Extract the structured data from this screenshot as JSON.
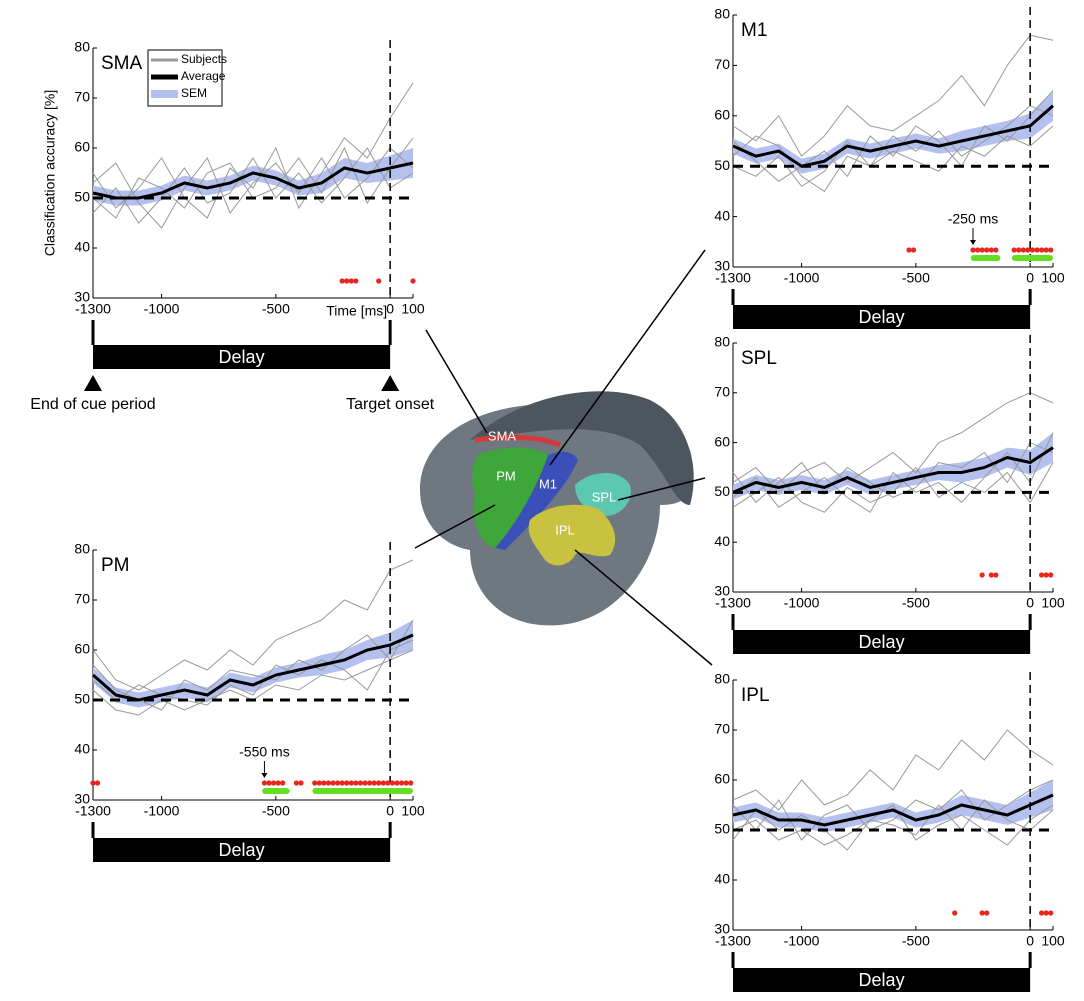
{
  "chart_data": [
    {
      "type": "line",
      "title": "SMA",
      "ylabel": "Classification accuracy [%]",
      "xlabel": "Time [ms]",
      "period_label": "Delay",
      "period_markers": [
        {
          "text": "End of cue period",
          "x": -1300
        },
        {
          "text": "Target onset",
          "x": 0
        }
      ],
      "legend": [
        "Subjects",
        "Average",
        "SEM"
      ],
      "x": [
        -1300,
        -1200,
        -1100,
        -1000,
        -900,
        -800,
        -700,
        -600,
        -500,
        -400,
        -300,
        -200,
        -100,
        0,
        100
      ],
      "series": [
        {
          "color": "#000000",
          "values": [
            51,
            50,
            50,
            51,
            53,
            52,
            53,
            55,
            54,
            52,
            53,
            56,
            55,
            56,
            57
          ],
          "sem": [
            1.5,
            1.5,
            1.5,
            1.5,
            1.5,
            1.5,
            1.5,
            1.5,
            1.5,
            1.5,
            2,
            2,
            2,
            2.5,
            3
          ],
          "sem_color": "#b4c0ee"
        }
      ],
      "subjects": {
        "color": "#999999",
        "values": [
          [
            55,
            48,
            52,
            58,
            50,
            46,
            56,
            52,
            60,
            48,
            55,
            62,
            58,
            66,
            73
          ],
          [
            47,
            52,
            45,
            50,
            56,
            49,
            51,
            58,
            50,
            55,
            49,
            54,
            60,
            52,
            55
          ],
          [
            53,
            57,
            49,
            44,
            52,
            58,
            47,
            53,
            57,
            51,
            58,
            50,
            54,
            60,
            56
          ],
          [
            50,
            46,
            54,
            52,
            48,
            55,
            57,
            50,
            52,
            58,
            51,
            60,
            49,
            56,
            62
          ]
        ]
      },
      "significant": {
        "color": "#e8261f",
        "x": [
          -210,
          -190,
          -170,
          -150,
          -50,
          100
        ]
      },
      "clusters": {
        "color": "#66dd22",
        "ranges": []
      },
      "annotations": [],
      "chance_level": 50,
      "onset": 0,
      "xlim": [
        -1300,
        100
      ],
      "xticks": [
        -1300,
        -1000,
        -500,
        0,
        100
      ],
      "ylim": [
        30,
        80
      ],
      "yticks": [
        30,
        40,
        50,
        60,
        70,
        80
      ]
    },
    {
      "type": "line",
      "title": "M1",
      "period_label": "Delay",
      "x": [
        -1300,
        -1200,
        -1100,
        -1000,
        -900,
        -800,
        -700,
        -600,
        -500,
        -400,
        -300,
        -200,
        -100,
        0,
        100
      ],
      "series": [
        {
          "color": "#000000",
          "values": [
            54,
            52,
            53,
            50,
            51,
            54,
            53,
            54,
            55,
            54,
            55,
            56,
            57,
            58,
            62
          ],
          "sem": [
            1.5,
            1.5,
            1.5,
            1.5,
            1.5,
            1.5,
            1.5,
            1.5,
            1.5,
            1.5,
            2,
            2,
            2,
            2.5,
            3
          ],
          "sem_color": "#b4c0ee"
        }
      ],
      "subjects": {
        "color": "#999999",
        "values": [
          [
            58,
            55,
            60,
            52,
            56,
            62,
            58,
            57,
            60,
            63,
            68,
            62,
            70,
            76,
            75
          ],
          [
            50,
            48,
            52,
            46,
            49,
            55,
            50,
            53,
            51,
            49,
            54,
            52,
            56,
            54,
            58
          ],
          [
            55,
            51,
            47,
            50,
            53,
            48,
            56,
            52,
            58,
            55,
            50,
            58,
            55,
            60,
            65
          ],
          [
            52,
            56,
            54,
            48,
            45,
            52,
            50,
            56,
            53,
            57,
            52,
            55,
            58,
            62,
            60
          ]
        ]
      },
      "significant": {
        "color": "#e8261f",
        "x": [
          -530,
          -510,
          -250,
          -230,
          -210,
          -190,
          -170,
          -150,
          -70,
          -50,
          -30,
          -10,
          10,
          30,
          50,
          70,
          90
        ]
      },
      "clusters": {
        "color": "#66dd22",
        "ranges": [
          [
            -260,
            -130
          ],
          [
            -80,
            100
          ]
        ]
      },
      "annotations": [
        {
          "text": "-250 ms",
          "x": -250
        }
      ],
      "chance_level": 50,
      "onset": 0,
      "xlim": [
        -1300,
        100
      ],
      "xticks": [
        -1300,
        -1000,
        -500,
        0,
        100
      ],
      "ylim": [
        30,
        80
      ],
      "yticks": [
        30,
        40,
        50,
        60,
        70,
        80
      ]
    },
    {
      "type": "line",
      "title": "SPL",
      "period_label": "Delay",
      "x": [
        -1300,
        -1200,
        -1100,
        -1000,
        -900,
        -800,
        -700,
        -600,
        -500,
        -400,
        -300,
        -200,
        -100,
        0,
        100
      ],
      "series": [
        {
          "color": "#000000",
          "values": [
            50,
            52,
            51,
            52,
            51,
            53,
            51,
            52,
            53,
            54,
            54,
            55,
            57,
            56,
            59
          ],
          "sem": [
            1.5,
            1.5,
            1.5,
            1.5,
            1.5,
            1.5,
            1.5,
            1.5,
            1.5,
            1.5,
            2,
            2,
            2,
            2.5,
            3
          ],
          "sem_color": "#b4c0ee"
        }
      ],
      "subjects": {
        "color": "#999999",
        "values": [
          [
            52,
            55,
            50,
            54,
            56,
            52,
            55,
            58,
            54,
            60,
            62,
            65,
            68,
            70,
            68
          ],
          [
            47,
            50,
            53,
            48,
            46,
            51,
            48,
            50,
            55,
            49,
            52,
            50,
            54,
            48,
            56
          ],
          [
            54,
            48,
            52,
            56,
            50,
            55,
            52,
            49,
            51,
            56,
            55,
            58,
            52,
            60,
            58
          ],
          [
            49,
            53,
            47,
            50,
            53,
            49,
            46,
            54,
            50,
            52,
            48,
            53,
            58,
            52,
            62
          ]
        ]
      },
      "significant": {
        "color": "#e8261f",
        "x": [
          -210,
          -170,
          -150,
          50,
          70,
          90
        ]
      },
      "clusters": {
        "color": "#66dd22",
        "ranges": []
      },
      "annotations": [],
      "chance_level": 50,
      "onset": 0,
      "xlim": [
        -1300,
        100
      ],
      "xticks": [
        -1300,
        -1000,
        -500,
        0,
        100
      ],
      "ylim": [
        30,
        80
      ],
      "yticks": [
        30,
        40,
        50,
        60,
        70,
        80
      ]
    },
    {
      "type": "line",
      "title": "IPL",
      "period_label": "Delay",
      "x": [
        -1300,
        -1200,
        -1100,
        -1000,
        -900,
        -800,
        -700,
        -600,
        -500,
        -400,
        -300,
        -200,
        -100,
        0,
        100
      ],
      "series": [
        {
          "color": "#000000",
          "values": [
            53,
            54,
            52,
            52,
            51,
            52,
            53,
            54,
            52,
            53,
            55,
            54,
            53,
            55,
            57
          ],
          "sem": [
            1.5,
            1.5,
            1.5,
            1.5,
            1.5,
            1.5,
            1.5,
            1.5,
            1.5,
            1.5,
            2,
            2,
            2,
            2.5,
            3
          ],
          "sem_color": "#b4c0ee"
        }
      ],
      "subjects": {
        "color": "#999999",
        "values": [
          [
            56,
            58,
            54,
            60,
            55,
            57,
            62,
            58,
            65,
            62,
            68,
            64,
            70,
            66,
            63
          ],
          [
            50,
            52,
            48,
            50,
            47,
            49,
            52,
            55,
            48,
            51,
            53,
            50,
            47,
            52,
            55
          ],
          [
            55,
            50,
            56,
            48,
            53,
            55,
            50,
            52,
            56,
            54,
            58,
            52,
            55,
            58,
            60
          ],
          [
            48,
            54,
            50,
            53,
            50,
            46,
            52,
            51,
            49,
            55,
            50,
            56,
            52,
            50,
            54
          ]
        ]
      },
      "significant": {
        "color": "#e8261f",
        "x": [
          -330,
          -210,
          -190,
          50,
          70,
          90
        ]
      },
      "clusters": {
        "color": "#66dd22",
        "ranges": []
      },
      "annotations": [],
      "chance_level": 50,
      "onset": 0,
      "xlim": [
        -1300,
        100
      ],
      "xticks": [
        -1300,
        -1000,
        -500,
        0,
        100
      ],
      "ylim": [
        30,
        80
      ],
      "yticks": [
        30,
        40,
        50,
        60,
        70,
        80
      ]
    },
    {
      "type": "line",
      "title": "PM",
      "period_label": "Delay",
      "x": [
        -1300,
        -1200,
        -1100,
        -1000,
        -900,
        -800,
        -700,
        -600,
        -500,
        -400,
        -300,
        -200,
        -100,
        0,
        100
      ],
      "series": [
        {
          "color": "#000000",
          "values": [
            55,
            51,
            50,
            51,
            52,
            51,
            54,
            53,
            55,
            56,
            57,
            58,
            60,
            61,
            63
          ],
          "sem": [
            1.5,
            1.5,
            1.5,
            1.5,
            1.5,
            1.5,
            1.5,
            1.5,
            1.5,
            1.5,
            2,
            2,
            2,
            2.5,
            3
          ],
          "sem_color": "#b4c0ee"
        }
      ],
      "subjects": {
        "color": "#999999",
        "values": [
          [
            60,
            54,
            52,
            55,
            58,
            56,
            60,
            57,
            62,
            64,
            66,
            70,
            68,
            76,
            78
          ],
          [
            52,
            48,
            47,
            50,
            48,
            50,
            52,
            50,
            53,
            52,
            55,
            54,
            56,
            58,
            60
          ],
          [
            57,
            52,
            50,
            48,
            54,
            52,
            56,
            55,
            54,
            58,
            56,
            60,
            63,
            58,
            66
          ],
          [
            54,
            50,
            53,
            51,
            50,
            49,
            53,
            51,
            57,
            55,
            58,
            56,
            52,
            60,
            62
          ]
        ]
      },
      "significant": {
        "color": "#e8261f",
        "x": [
          -1300,
          -1280,
          -550,
          -530,
          -510,
          -490,
          -470,
          -410,
          -390,
          -330,
          -310,
          -290,
          -270,
          -250,
          -230,
          -210,
          -190,
          -170,
          -150,
          -130,
          -110,
          -90,
          -70,
          -50,
          -30,
          -10,
          10,
          30,
          50,
          70,
          90
        ]
      },
      "clusters": {
        "color": "#66dd22",
        "ranges": [
          [
            -560,
            -440
          ],
          [
            -340,
            100
          ]
        ]
      },
      "annotations": [
        {
          "text": "-550 ms",
          "x": -550
        }
      ],
      "chance_level": 50,
      "onset": 0,
      "xlim": [
        -1300,
        100
      ],
      "xticks": [
        -1300,
        -1000,
        -500,
        0,
        100
      ],
      "ylim": [
        30,
        80
      ],
      "yticks": [
        30,
        40,
        50,
        60,
        70,
        80
      ]
    }
  ],
  "brain": {
    "labels": [
      "SMA",
      "PM",
      "M1",
      "SPL",
      "IPL"
    ]
  }
}
